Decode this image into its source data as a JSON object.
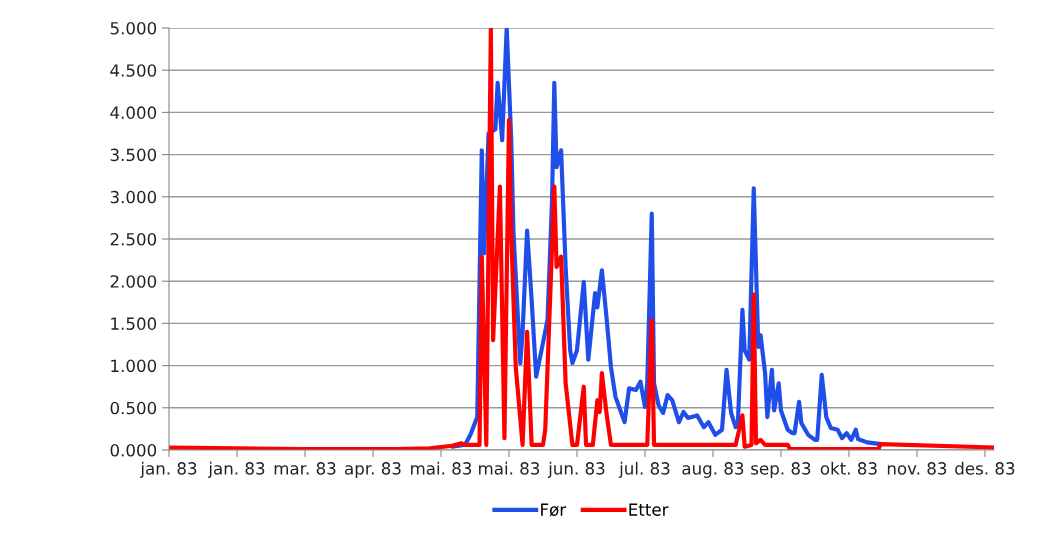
{
  "chart_data": {
    "type": "line",
    "xlim": [
      "1983-01-01",
      "1983-12-31"
    ],
    "xticks": [
      {
        "value": "1983-01-01",
        "label": "jan. 83"
      },
      {
        "value": "1983-01-31",
        "label": "jan. 83"
      },
      {
        "value": "1983-03-02",
        "label": "mar. 83"
      },
      {
        "value": "1983-04-01",
        "label": "apr. 83"
      },
      {
        "value": "1983-05-01",
        "label": "mai. 83"
      },
      {
        "value": "1983-05-31",
        "label": "mai. 83"
      },
      {
        "value": "1983-06-30",
        "label": "jun. 83"
      },
      {
        "value": "1983-07-30",
        "label": "jul. 83"
      },
      {
        "value": "1983-08-29",
        "label": "aug. 83"
      },
      {
        "value": "1983-09-28",
        "label": "sep. 83"
      },
      {
        "value": "1983-10-28",
        "label": "okt. 83"
      },
      {
        "value": "1983-11-27",
        "label": "nov. 83"
      },
      {
        "value": "1983-12-27",
        "label": "des. 83"
      }
    ],
    "ylim": [
      0,
      5
    ],
    "yticks": [
      {
        "value": 0,
        "label": "0.000"
      },
      {
        "value": 0.5,
        "label": "0.500"
      },
      {
        "value": 1,
        "label": "1.000"
      },
      {
        "value": 1.5,
        "label": "1.500"
      },
      {
        "value": 2,
        "label": "2.000"
      },
      {
        "value": 2.5,
        "label": "2.500"
      },
      {
        "value": 3,
        "label": "3.000"
      },
      {
        "value": 3.5,
        "label": "3.500"
      },
      {
        "value": 4,
        "label": "4.000"
      },
      {
        "value": 4.5,
        "label": "4.500"
      },
      {
        "value": 5,
        "label": "5.000"
      }
    ],
    "grid": "y",
    "legend": "bottom",
    "marker": "none",
    "line_style": "solid",
    "series": [
      {
        "name": "Før",
        "color": "#1f4fe8",
        "x": [
          "1983-05-06",
          "1983-05-11",
          "1983-05-12",
          "1983-05-14",
          "1983-05-17",
          "1983-05-19",
          "1983-05-20",
          "1983-05-22",
          "1983-05-25",
          "1983-05-26",
          "1983-05-28",
          "1983-05-30",
          "1983-06-01",
          "1983-06-02",
          "1983-06-05",
          "1983-06-06",
          "1983-06-08",
          "1983-06-10",
          "1983-06-12",
          "1983-06-15",
          "1983-06-17",
          "1983-06-19",
          "1983-06-20",
          "1983-06-21",
          "1983-06-23",
          "1983-06-25",
          "1983-06-27",
          "1983-06-28",
          "1983-06-30",
          "1983-07-03",
          "1983-07-05",
          "1983-07-08",
          "1983-07-09",
          "1983-07-11",
          "1983-07-13",
          "1983-07-15",
          "1983-07-17",
          "1983-07-21",
          "1983-07-23",
          "1983-07-26",
          "1983-07-28",
          "1983-07-30",
          "1983-07-31",
          "1983-08-02",
          "1983-08-03",
          "1983-08-05",
          "1983-08-07",
          "1983-08-09",
          "1983-08-11",
          "1983-08-14",
          "1983-08-16",
          "1983-08-18",
          "1983-08-22",
          "1983-08-25",
          "1983-08-27",
          "1983-08-30",
          "1983-09-02",
          "1983-09-04",
          "1983-09-06",
          "1983-09-08",
          "1983-09-09",
          "1983-09-11",
          "1983-09-12",
          "1983-09-14",
          "1983-09-16",
          "1983-09-18",
          "1983-09-19",
          "1983-09-21",
          "1983-09-22",
          "1983-09-24",
          "1983-09-25",
          "1983-09-27",
          "1983-09-28",
          "1983-10-01",
          "1983-10-03",
          "1983-10-04",
          "1983-10-06",
          "1983-10-07",
          "1983-10-10",
          "1983-10-13",
          "1983-10-14",
          "1983-10-16",
          "1983-10-18",
          "1983-10-20",
          "1983-10-23",
          "1983-10-25",
          "1983-10-27",
          "1983-10-29",
          "1983-10-31",
          "1983-11-01",
          "1983-11-05",
          "1983-11-11"
        ],
        "values": [
          0.04,
          0.06,
          0.08,
          0.18,
          0.39,
          3.55,
          2.33,
          3.75,
          3.8,
          4.35,
          3.67,
          5.0,
          3.67,
          2.57,
          1.03,
          1.39,
          2.6,
          1.78,
          0.87,
          1.27,
          1.54,
          2.96,
          4.35,
          3.35,
          3.55,
          2.17,
          1.18,
          1.03,
          1.18,
          1.99,
          1.07,
          1.86,
          1.69,
          2.13,
          1.58,
          0.98,
          0.63,
          0.33,
          0.73,
          0.71,
          0.81,
          0.51,
          0.79,
          2.8,
          0.79,
          0.53,
          0.44,
          0.65,
          0.59,
          0.33,
          0.45,
          0.38,
          0.41,
          0.27,
          0.33,
          0.18,
          0.24,
          0.95,
          0.44,
          0.27,
          0.32,
          1.66,
          1.18,
          1.07,
          3.1,
          1.22,
          1.36,
          0.91,
          0.39,
          0.95,
          0.47,
          0.79,
          0.47,
          0.24,
          0.2,
          0.2,
          0.57,
          0.32,
          0.18,
          0.12,
          0.12,
          0.89,
          0.39,
          0.26,
          0.24,
          0.14,
          0.2,
          0.12,
          0.24,
          0.13,
          0.09,
          0.07
        ]
      },
      {
        "name": "Etter",
        "color": "#ff0000",
        "x": [
          "1983-01-01",
          "1983-01-31",
          "1983-03-02",
          "1983-04-11",
          "1983-04-26",
          "1983-05-06",
          "1983-05-10",
          "1983-05-11",
          "1983-05-18",
          "1983-05-19",
          "1983-05-21",
          "1983-05-23",
          "1983-05-24",
          "1983-05-27",
          "1983-05-29",
          "1983-05-31",
          "1983-06-01",
          "1983-06-03",
          "1983-06-06",
          "1983-06-08",
          "1983-06-10",
          "1983-06-15",
          "1983-06-16",
          "1983-06-20",
          "1983-06-21",
          "1983-06-23",
          "1983-06-25",
          "1983-06-28",
          "1983-06-30",
          "1983-07-03",
          "1983-07-04",
          "1983-07-07",
          "1983-07-09",
          "1983-07-10",
          "1983-07-11",
          "1983-07-13",
          "1983-07-15",
          "1983-07-31",
          "1983-08-02",
          "1983-08-03",
          "1983-09-08",
          "1983-09-11",
          "1983-09-12",
          "1983-09-15",
          "1983-09-16",
          "1983-09-17",
          "1983-09-19",
          "1983-09-21",
          "1983-10-01",
          "1983-10-02",
          "1983-11-10",
          "1983-11-11",
          "1983-12-31"
        ],
        "values": [
          0.03,
          0.02,
          0.01,
          0.01,
          0.02,
          0.05,
          0.08,
          0.06,
          0.06,
          2.29,
          0.06,
          5.0,
          1.3,
          3.12,
          0.14,
          3.91,
          2.57,
          0.98,
          0.06,
          1.4,
          0.06,
          0.06,
          0.24,
          3.12,
          2.17,
          2.29,
          0.79,
          0.06,
          0.06,
          0.75,
          0.06,
          0.06,
          0.59,
          0.45,
          0.91,
          0.44,
          0.06,
          0.06,
          1.54,
          0.06,
          0.06,
          0.41,
          0.04,
          0.06,
          1.84,
          0.08,
          0.12,
          0.06,
          0.06,
          0.01,
          0.01,
          0.07,
          0.03
        ]
      }
    ]
  }
}
